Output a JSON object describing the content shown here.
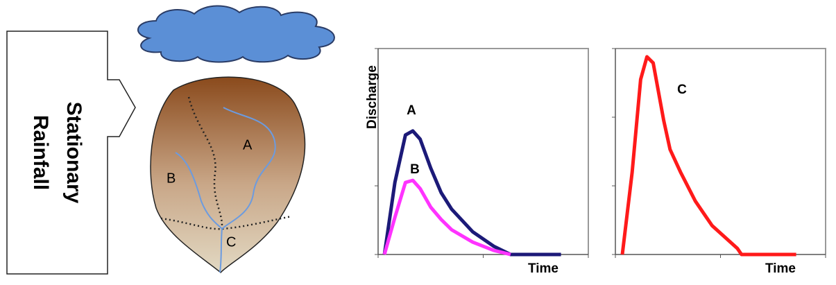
{
  "diagram": {
    "rainfall_label": [
      "Stationary",
      "Rainfall"
    ],
    "basin_labels": [
      "A",
      "B",
      "C"
    ]
  },
  "chart_data": [
    {
      "type": "line",
      "y_label": "Discharge",
      "x_label": "Time",
      "x": [
        0.3,
        0.8,
        1.3,
        1.65,
        2.0,
        2.5,
        3.0,
        3.5,
        4.5,
        5.5,
        6.3,
        7.0,
        8.7
      ],
      "xlim": [
        0,
        10
      ],
      "ylim": [
        0,
        10
      ],
      "series": [
        {
          "name": "A",
          "color": "#1c1a78",
          "values": [
            0,
            3.5,
            5.8,
            6.0,
            5.6,
            4.2,
            3.0,
            2.2,
            1.1,
            0.4,
            0,
            0,
            0
          ]
        },
        {
          "name": "B",
          "color": "#ff33ff",
          "values": [
            0,
            1.8,
            3.5,
            3.6,
            3.2,
            2.3,
            1.7,
            1.2,
            0.6,
            0.2,
            0,
            null,
            null
          ]
        }
      ]
    },
    {
      "type": "line",
      "x_label": "Time",
      "x": [
        0.33,
        0.8,
        1.2,
        1.5,
        1.8,
        2.3,
        2.6,
        3.1,
        3.8,
        4.6,
        5.8,
        6.0,
        8.6
      ],
      "xlim": [
        0,
        10
      ],
      "ylim": [
        0,
        10
      ],
      "series": [
        {
          "name": "C",
          "color": "#ff1a1a",
          "values": [
            0,
            4.0,
            8.5,
            9.6,
            9.3,
            6.5,
            5.1,
            4.0,
            2.6,
            1.4,
            0.3,
            0,
            0
          ]
        }
      ]
    }
  ]
}
